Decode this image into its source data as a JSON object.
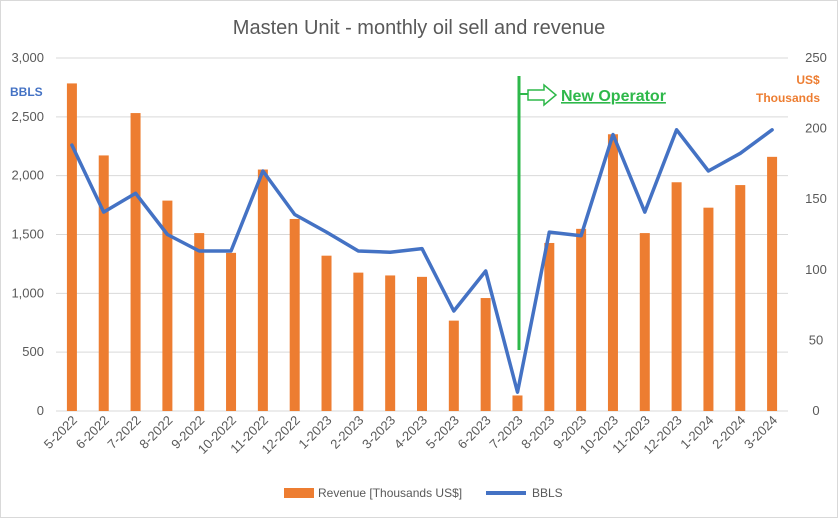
{
  "chart_data": {
    "type": "bar",
    "title": "Masten Unit - monthly oil sell and revenue",
    "categories": [
      "5-2022",
      "6-2022",
      "7-2022",
      "8-2022",
      "9-2022",
      "10-2022",
      "11-2022",
      "12-2022",
      "1-2023",
      "2-2023",
      "3-2023",
      "4-2023",
      "5-2023",
      "6-2023",
      "7-2023",
      "8-2023",
      "9-2023",
      "10-2023",
      "11-2023",
      "12-2023",
      "1-2024",
      "2-2024",
      "3-2024"
    ],
    "series": [
      {
        "name": "Revenue [Thousands US$]",
        "type": "bar",
        "axis": "right",
        "color": "#ed7d31",
        "values": [
          232,
          181,
          211,
          149,
          126,
          112,
          171,
          136,
          110,
          98,
          96,
          95,
          64,
          80,
          11,
          119,
          129,
          196,
          126,
          162,
          144,
          160,
          180
        ]
      },
      {
        "name": "BBLS",
        "type": "line",
        "axis": "left",
        "color": "#4472c4",
        "values": [
          2260,
          1690,
          1850,
          1500,
          1360,
          1360,
          2040,
          1670,
          1520,
          1360,
          1350,
          1380,
          850,
          1190,
          160,
          1520,
          1490,
          2350,
          1690,
          2390,
          2040,
          2190,
          2390
        ]
      }
    ],
    "y_left": {
      "label": "BBLS",
      "ticks": [
        "0",
        "500",
        "1,000",
        "1,500",
        "2,000",
        "2,500",
        "3,000"
      ],
      "ylim": [
        0,
        3000
      ]
    },
    "y_right": {
      "label_line1": "US$",
      "label_line2": "Thousands",
      "ticks": [
        "0",
        "50",
        "100",
        "150",
        "200",
        "250"
      ],
      "ylim": [
        0,
        250
      ]
    },
    "annotation": {
      "text": "New Operator",
      "at_category": "7-2023",
      "color": "#2eb84a"
    },
    "grid": true,
    "legend_position": "bottom"
  }
}
